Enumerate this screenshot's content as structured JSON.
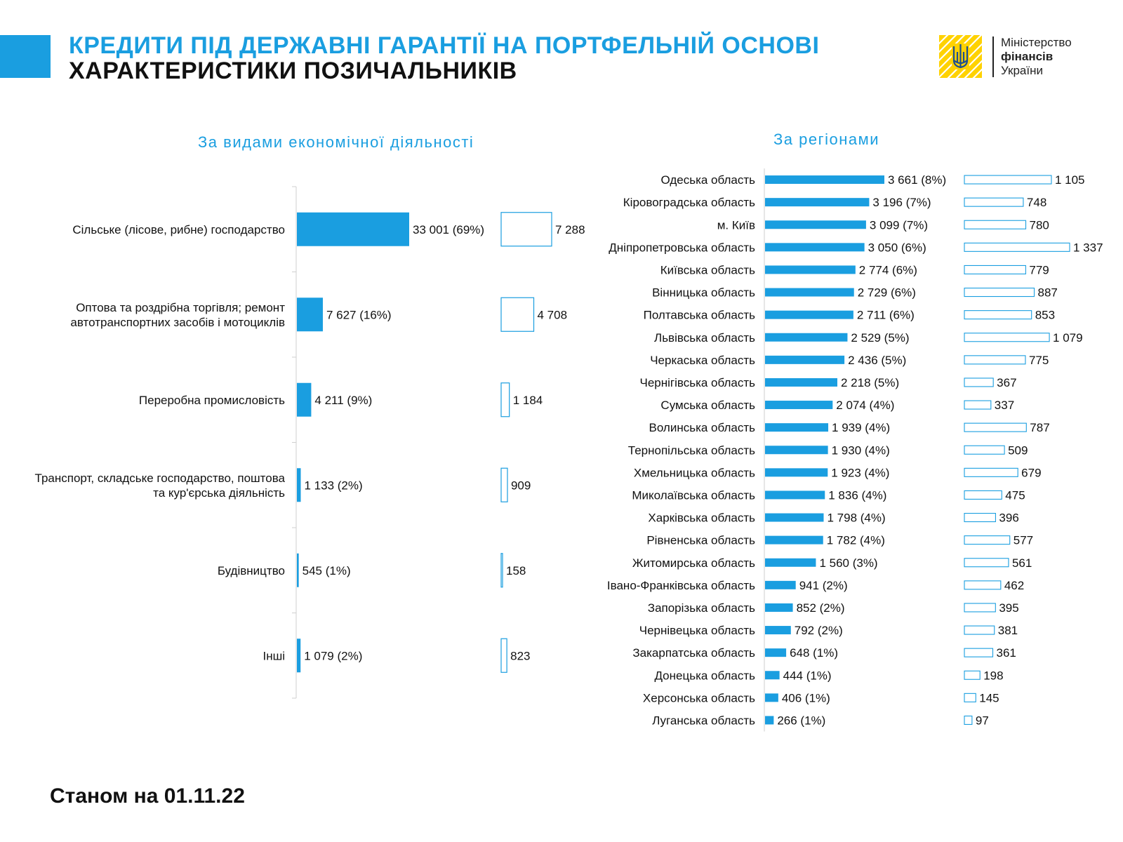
{
  "header": {
    "title_line1": "КРЕДИТИ ПІД ДЕРЖАВНІ ГАРАНТІЇ НА ПОРТФЕЛЬНІЙ ОСНОВІ",
    "title_line2": "ХАРАКТЕРИСТИКИ ПОЗИЧАЛЬНИКІВ",
    "accent_color": "#1a9ee0"
  },
  "logo": {
    "line1": "Міністерство",
    "line2": "фінансів",
    "line3": "України",
    "square_color": "#ffd200",
    "icon": "trident-emblem-icon"
  },
  "footer": {
    "note": "Станом на 01.11.22"
  },
  "chart_data": [
    {
      "type": "bar",
      "orientation": "horizontal",
      "title": "За видами економічної діяльності",
      "categories": [
        "Сільське (лісове, рибне) господарство",
        "Оптова та роздрібна торгівля; ремонт автотранспортних засобів і мотоциклів",
        "Переробна промисловість",
        "Транспорт, складське господарство, поштова та кур'єрська діяльність",
        "Будівництво",
        "Інші"
      ],
      "category_lines": [
        [
          "Сільське (лісове, рибне) господарство"
        ],
        [
          "Оптова та роздрібна торгівля; ремонт",
          "автотранспортних засобів і мотоциклів"
        ],
        [
          "Переробна промисловість"
        ],
        [
          "Транспорт, складське господарство, поштова",
          "та кур'єрська діяльність"
        ],
        [
          "Будівництво"
        ],
        [
          "Інші"
        ]
      ],
      "series": [
        {
          "values": [
            33001,
            7627,
            4211,
            1133,
            545,
            1079
          ],
          "labels": [
            "33 001 (69%)",
            "7 627 (16%)",
            "4 211 (9%)",
            "1 133 (2%)",
            "545 (1%)",
            "1 079 (2%)"
          ],
          "color": "#1a9ee0",
          "style": "filled"
        },
        {
          "values": [
            7288,
            4708,
            1184,
            909,
            158,
            823
          ],
          "labels": [
            "7 288",
            "4 708",
            "1 184",
            "909",
            "158",
            "823"
          ],
          "color": "#1a9ee0",
          "style": "outline"
        }
      ]
    },
    {
      "type": "bar",
      "orientation": "horizontal",
      "title": "За регіонами",
      "categories": [
        "Одеська область",
        "Кіровоградська область",
        "м. Київ",
        "Дніпропетровська область",
        "Київська область",
        "Вінницька область",
        "Полтавська область",
        "Львівська область",
        "Черкаська область",
        "Чернігівська область",
        "Сумська область",
        "Волинська область",
        "Тернопільська область",
        "Хмельницька область",
        "Миколаївська область",
        "Харківська область",
        "Рівненська область",
        "Житомирська область",
        "Івано-Франківська область",
        "Запорізька область",
        "Чернівецька область",
        "Закарпатська область",
        "Донецька область",
        "Херсонська область",
        "Луганська область"
      ],
      "series": [
        {
          "values": [
            3661,
            3196,
            3099,
            3050,
            2774,
            2729,
            2711,
            2529,
            2436,
            2218,
            2074,
            1939,
            1930,
            1923,
            1836,
            1798,
            1782,
            1560,
            941,
            852,
            792,
            648,
            444,
            406,
            266
          ],
          "labels": [
            "3 661 (8%)",
            "3 196 (7%)",
            "3 099 (7%)",
            "3 050 (6%)",
            "2 774 (6%)",
            "2 729 (6%)",
            "2 711 (6%)",
            "2 529 (5%)",
            "2 436 (5%)",
            "2 218 (5%)",
            "2 074 (4%)",
            "1 939 (4%)",
            "1 930 (4%)",
            "1 923 (4%)",
            "1 836 (4%)",
            "1 798 (4%)",
            "1 782 (4%)",
            "1 560 (3%)",
            "941 (2%)",
            "852 (2%)",
            "792 (2%)",
            "648 (1%)",
            "444 (1%)",
            "406 (1%)",
            "266 (1%)"
          ],
          "color": "#1a9ee0",
          "style": "filled"
        },
        {
          "values": [
            1105,
            748,
            780,
            1337,
            779,
            887,
            853,
            1079,
            775,
            367,
            337,
            787,
            509,
            679,
            475,
            396,
            577,
            561,
            462,
            395,
            381,
            361,
            198,
            145,
            97
          ],
          "labels": [
            "1 105",
            "748",
            "780",
            "1 337",
            "779",
            "887",
            "853",
            "1 079",
            "775",
            "367",
            "337",
            "787",
            "509",
            "679",
            "475",
            "396",
            "577",
            "561",
            "462",
            "395",
            "381",
            "361",
            "198",
            "145",
            "97"
          ],
          "color": "#1a9ee0",
          "style": "outline"
        }
      ]
    }
  ]
}
